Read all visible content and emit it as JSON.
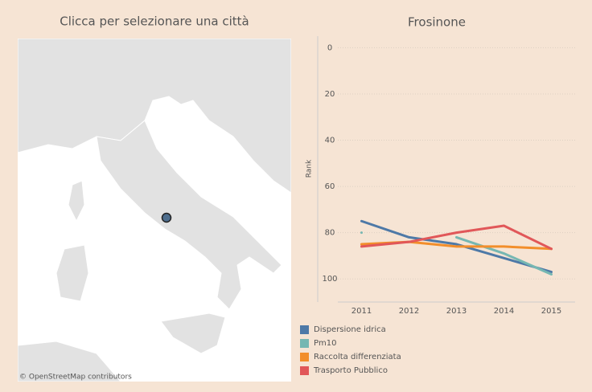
{
  "map": {
    "title": "Clicca per selezionare una città",
    "attribution": "© OpenStreetMap contributors"
  },
  "chart_data": {
    "type": "line",
    "title": "Frosinone",
    "y_label": "Rank",
    "categories": [
      "2011",
      "2012",
      "2013",
      "2014",
      "2015"
    ],
    "series": [
      {
        "name": "Dispersione idrica",
        "color": "#4e79a7",
        "values": [
          75,
          82,
          85,
          91,
          97
        ]
      },
      {
        "name": "Pm10",
        "color": "#76b7b2",
        "values": [
          80,
          null,
          82,
          89,
          98
        ]
      },
      {
        "name": "Raccolta differenziata",
        "color": "#f28e2b",
        "values": [
          85,
          84,
          86,
          86,
          87
        ]
      },
      {
        "name": "Trasporto Pubblico",
        "color": "#e15759",
        "values": [
          86,
          84,
          80,
          77,
          87
        ]
      }
    ],
    "ylim": [
      -5,
      110
    ],
    "yticks": [
      0,
      20,
      40,
      60,
      80,
      100
    ],
    "y_reversed": true,
    "grid": true
  }
}
